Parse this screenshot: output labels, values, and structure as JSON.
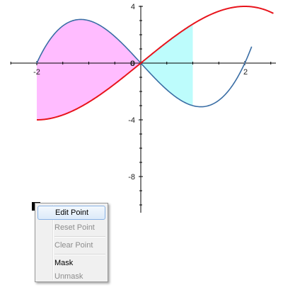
{
  "axes": {
    "x_tick_labels": [
      "-2",
      "0",
      "2"
    ],
    "y_tick_labels": [
      "4",
      "0",
      "-4",
      "-8"
    ]
  },
  "colors": {
    "red_curve": "#e8141c",
    "blue_curve": "#3a6ea5",
    "magenta_fill": "#ffbcff",
    "cyan_fill": "#bdfcfc"
  },
  "context_menu": {
    "items": [
      {
        "label": "Edit Point",
        "enabled": true,
        "highlighted": true
      },
      {
        "label": "Reset Point",
        "enabled": false
      },
      {
        "label": "Clear Point",
        "enabled": false
      },
      {
        "label": "Mask",
        "enabled": true
      },
      {
        "label": "Unmask",
        "enabled": false
      }
    ]
  }
}
